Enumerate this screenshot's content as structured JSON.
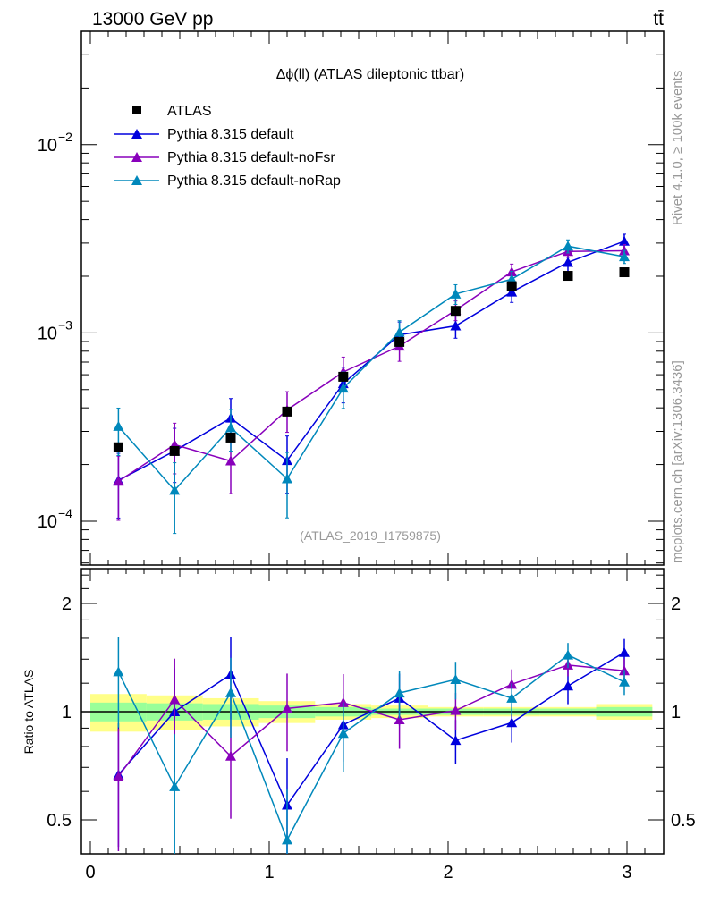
{
  "header": {
    "left": "13000 GeV pp",
    "right": "tt̄"
  },
  "side_labels": {
    "rivet": "Rivet 4.1.0, ≥ 100k events",
    "mcplots": "mcplots.cern.ch [arXiv:1306.3436]"
  },
  "chart_data": [
    {
      "type": "scatter",
      "title": "Δϕ(ll) (ATLAS dileptonic ttbar)",
      "analysis_label": "(ATLAS_2019_I1759875)",
      "xlabel": "",
      "ylabel": "",
      "xlim": [
        0,
        3.1416
      ],
      "ylim": [
        5.85e-05,
        0.04
      ],
      "yscale": "log",
      "ytick_labels": [
        {
          "v": 0.01,
          "base": "10",
          "exp": "−2"
        },
        {
          "v": 0.001,
          "base": "10",
          "exp": "−3"
        },
        {
          "v": 0.0001,
          "base": "10",
          "exp": "−4"
        }
      ],
      "legend_position": "top-left",
      "x": [
        0.157,
        0.471,
        0.785,
        1.1,
        1.414,
        1.728,
        2.042,
        2.356,
        2.67,
        2.985
      ],
      "data": {
        "name": "ATLAS",
        "color": "#000000",
        "values": [
          0.000247,
          0.000236,
          0.000278,
          0.000382,
          0.000585,
          0.000896,
          0.00131,
          0.00177,
          0.00201,
          0.0021
        ]
      },
      "series": [
        {
          "name": "Pythia 8.315 default",
          "color": "#0000dd",
          "values": [
            0.000165,
            0.000236,
            0.000353,
            0.00021,
            0.000538,
            0.000977,
            0.00109,
            0.00165,
            0.00237,
            0.00307
          ],
          "err_rel": [
            [
              0.37,
              0.39
            ],
            [
              0.32,
              0.32
            ],
            [
              0.25,
              0.27
            ],
            [
              0.33,
              0.35
            ],
            [
              0.21,
              0.22
            ],
            [
              0.16,
              0.17
            ],
            [
              0.14,
              0.14
            ],
            [
              0.12,
              0.13
            ],
            [
              0.11,
              0.12
            ],
            [
              0.09,
              0.09
            ]
          ]
        },
        {
          "name": "Pythia 8.315 default-noFsr",
          "color": "#8800bb",
          "values": [
            0.000163,
            0.000255,
            0.000209,
            0.00039,
            0.00062,
            0.000851,
            0.00132,
            0.00211,
            0.00271,
            0.00273
          ],
          "err_rel": [
            [
              0.38,
              0.36
            ],
            [
              0.3,
              0.3
            ],
            [
              0.33,
              0.33
            ],
            [
              0.24,
              0.25
            ],
            [
              0.2,
              0.2
            ],
            [
              0.17,
              0.21
            ],
            [
              0.12,
              0.12
            ],
            [
              0.1,
              0.1
            ],
            [
              0.07,
              0.07
            ],
            [
              0.08,
              0.08
            ]
          ]
        },
        {
          "name": "Pythia 8.315 default-noRap",
          "color": "#0088bb",
          "values": [
            0.000319,
            0.000146,
            0.000314,
            0.000168,
            0.000509,
            0.00101,
            0.00161,
            0.00193,
            0.00289,
            0.00254
          ],
          "err_rel": [
            [
              0.3,
              0.25
            ],
            [
              0.41,
              0.4
            ],
            [
              0.25,
              0.25
            ],
            [
              0.38,
              0.38
            ],
            [
              0.22,
              0.22
            ],
            [
              0.15,
              0.15
            ],
            [
              0.12,
              0.12
            ],
            [
              0.1,
              0.1
            ],
            [
              0.08,
              0.08
            ],
            [
              0.08,
              0.08
            ]
          ]
        }
      ]
    },
    {
      "type": "scatter",
      "ylabel": "Ratio to ATLAS",
      "yscale": "log",
      "ylim": [
        0.4,
        2.48
      ],
      "xlim": [
        0,
        3.1416
      ],
      "xtick_labels": [
        "0",
        "1",
        "2",
        "3"
      ],
      "ytick_labels": [
        "2",
        "1",
        "0.5"
      ],
      "band_total_rel": [
        0.12,
        0.11,
        0.09,
        0.07,
        0.05,
        0.04,
        0.03,
        0.03,
        0.03,
        0.05
      ],
      "band_stat_rel": [
        0.06,
        0.055,
        0.05,
        0.04,
        0.03,
        0.02,
        0.02,
        0.02,
        0.02,
        0.03
      ],
      "band_colors": {
        "total": "#ffff88",
        "stat": "#99ff99"
      }
    }
  ]
}
